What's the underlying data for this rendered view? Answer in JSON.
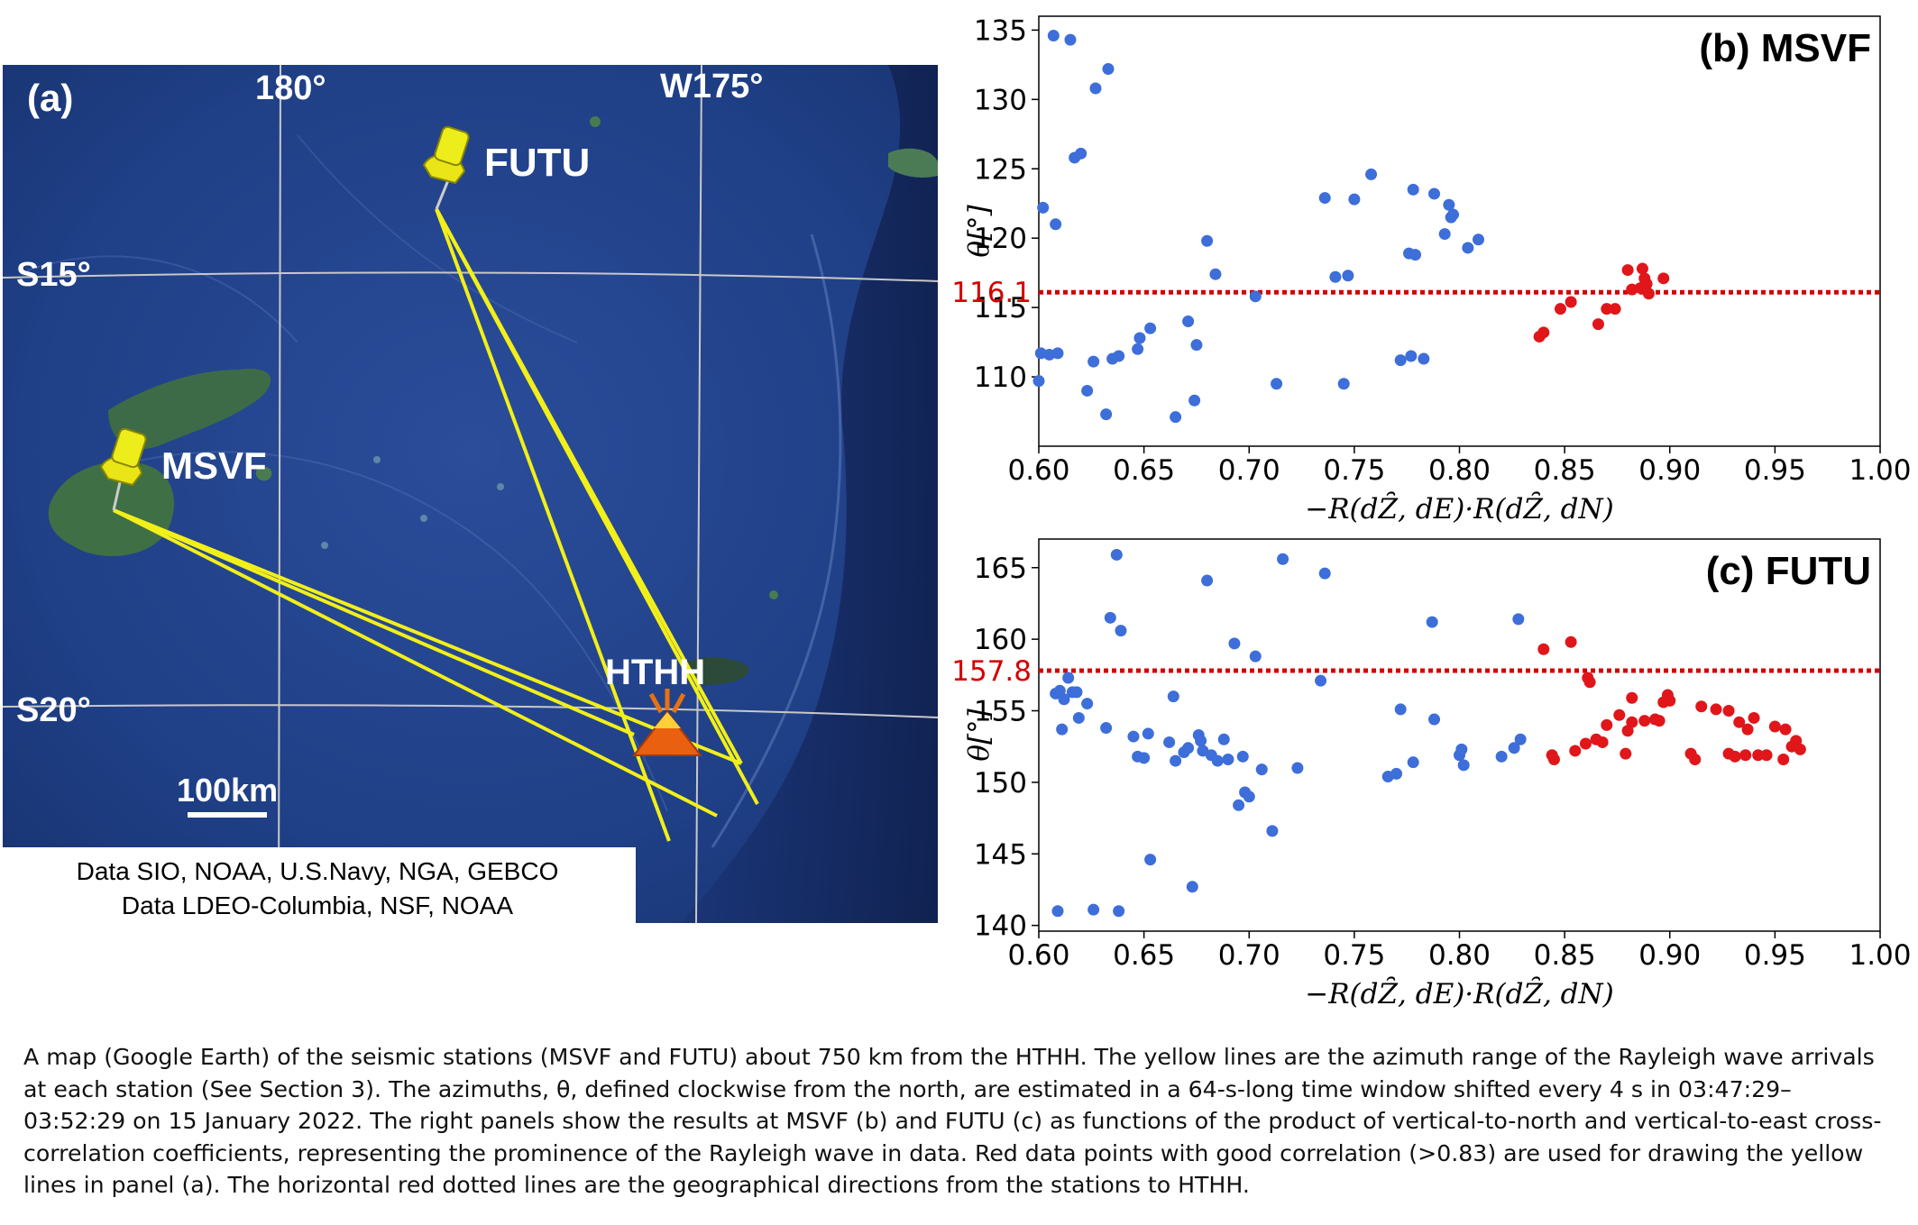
{
  "map": {
    "panel_label": "(a)",
    "lon_labels": [
      "180°",
      "W175°"
    ],
    "lat_labels": [
      "S15°",
      "S20°"
    ],
    "stations": [
      "FUTU",
      "MSVF"
    ],
    "volcano_label": "HTHH",
    "scale_label": "100km",
    "credits": [
      "Data SIO, NOAA, U.S.Navy, NGA, GEBCO",
      "Data LDEO-Columbia, NSF, NOAA"
    ]
  },
  "chart_data": [
    {
      "type": "scatter",
      "title": "(b) MSVF",
      "xlabel": "−R(dZ̑, dE)·R(dZ̑, dN)",
      "ylabel": "θ[°]",
      "xlim": [
        0.6,
        1.0
      ],
      "ylim": [
        105,
        136
      ],
      "xticks": [
        "0.60",
        "0.65",
        "0.70",
        "0.75",
        "0.80",
        "0.85",
        "0.90",
        "0.95",
        "1.00"
      ],
      "yticks": [
        "110",
        "115",
        "120",
        "125",
        "130",
        "135"
      ],
      "reference": {
        "value": 116.1,
        "label": "116.1",
        "color": "#d40000"
      },
      "series": [
        {
          "color": "#3d6ed9",
          "points": [
            [
              0.6,
              109.7
            ],
            [
              0.601,
              111.7
            ],
            [
              0.602,
              122.2
            ],
            [
              0.605,
              111.6
            ],
            [
              0.607,
              134.6
            ],
            [
              0.608,
              121.0
            ],
            [
              0.609,
              111.7
            ],
            [
              0.615,
              134.3
            ],
            [
              0.617,
              125.8
            ],
            [
              0.62,
              126.1
            ],
            [
              0.623,
              109.0
            ],
            [
              0.626,
              111.1
            ],
            [
              0.627,
              130.8
            ],
            [
              0.632,
              107.3
            ],
            [
              0.633,
              132.2
            ],
            [
              0.635,
              111.3
            ],
            [
              0.638,
              111.5
            ],
            [
              0.647,
              112.0
            ],
            [
              0.648,
              112.8
            ],
            [
              0.653,
              113.5
            ],
            [
              0.665,
              107.1
            ],
            [
              0.671,
              114.0
            ],
            [
              0.674,
              108.3
            ],
            [
              0.675,
              112.3
            ],
            [
              0.68,
              119.8
            ],
            [
              0.684,
              117.4
            ],
            [
              0.703,
              115.8
            ],
            [
              0.713,
              109.5
            ],
            [
              0.736,
              122.9
            ],
            [
              0.741,
              117.2
            ],
            [
              0.745,
              109.5
            ],
            [
              0.747,
              117.3
            ],
            [
              0.75,
              122.8
            ],
            [
              0.758,
              124.6
            ],
            [
              0.772,
              111.2
            ],
            [
              0.776,
              118.9
            ],
            [
              0.777,
              111.5
            ],
            [
              0.778,
              123.5
            ],
            [
              0.779,
              118.8
            ],
            [
              0.783,
              111.3
            ],
            [
              0.788,
              123.2
            ],
            [
              0.793,
              120.3
            ],
            [
              0.795,
              122.4
            ],
            [
              0.796,
              121.5
            ],
            [
              0.797,
              121.7
            ],
            [
              0.804,
              119.3
            ],
            [
              0.809,
              119.9
            ]
          ]
        },
        {
          "color": "#e0161a",
          "points": [
            [
              0.838,
              112.9
            ],
            [
              0.84,
              113.2
            ],
            [
              0.848,
              114.9
            ],
            [
              0.853,
              115.4
            ],
            [
              0.866,
              113.8
            ],
            [
              0.87,
              114.9
            ],
            [
              0.874,
              114.9
            ],
            [
              0.88,
              117.7
            ],
            [
              0.882,
              116.3
            ],
            [
              0.886,
              116.4
            ],
            [
              0.887,
              117.8
            ],
            [
              0.888,
              117.1
            ],
            [
              0.889,
              116.7
            ],
            [
              0.89,
              116.0
            ],
            [
              0.897,
              117.1
            ]
          ]
        }
      ]
    },
    {
      "type": "scatter",
      "title": "(c) FUTU",
      "xlabel": "−R(dZ̑, dE)·R(dZ̑, dN)",
      "ylabel": "θ[°]",
      "xlim": [
        0.6,
        1.0
      ],
      "ylim": [
        139.6,
        167
      ],
      "xticks": [
        "0.60",
        "0.65",
        "0.70",
        "0.75",
        "0.80",
        "0.85",
        "0.90",
        "0.95",
        "1.00"
      ],
      "yticks": [
        "140",
        "145",
        "150",
        "155",
        "160",
        "165"
      ],
      "reference": {
        "value": 157.8,
        "label": "157.8",
        "color": "#d40000"
      },
      "series": [
        {
          "color": "#3d6ed9",
          "points": [
            [
              0.608,
              156.2
            ],
            [
              0.609,
              141.0
            ],
            [
              0.61,
              156.4
            ],
            [
              0.611,
              153.7
            ],
            [
              0.612,
              155.8
            ],
            [
              0.614,
              157.3
            ],
            [
              0.616,
              156.3
            ],
            [
              0.618,
              156.3
            ],
            [
              0.619,
              154.5
            ],
            [
              0.623,
              155.5
            ],
            [
              0.626,
              141.1
            ],
            [
              0.632,
              153.8
            ],
            [
              0.634,
              161.5
            ],
            [
              0.637,
              165.9
            ],
            [
              0.638,
              141.0
            ],
            [
              0.639,
              160.6
            ],
            [
              0.645,
              153.2
            ],
            [
              0.647,
              151.8
            ],
            [
              0.65,
              151.7
            ],
            [
              0.652,
              153.4
            ],
            [
              0.653,
              144.6
            ],
            [
              0.662,
              152.8
            ],
            [
              0.664,
              156.0
            ],
            [
              0.665,
              151.5
            ],
            [
              0.669,
              152.1
            ],
            [
              0.671,
              152.4
            ],
            [
              0.673,
              142.7
            ],
            [
              0.676,
              153.3
            ],
            [
              0.677,
              152.9
            ],
            [
              0.678,
              152.2
            ],
            [
              0.68,
              164.1
            ],
            [
              0.682,
              151.9
            ],
            [
              0.685,
              151.5
            ],
            [
              0.688,
              153.0
            ],
            [
              0.69,
              151.6
            ],
            [
              0.693,
              159.7
            ],
            [
              0.695,
              148.4
            ],
            [
              0.697,
              151.8
            ],
            [
              0.698,
              149.3
            ],
            [
              0.7,
              149.0
            ],
            [
              0.703,
              158.8
            ],
            [
              0.706,
              150.9
            ],
            [
              0.711,
              146.6
            ],
            [
              0.716,
              165.6
            ],
            [
              0.723,
              151.0
            ],
            [
              0.734,
              157.1
            ],
            [
              0.736,
              164.6
            ],
            [
              0.766,
              150.4
            ],
            [
              0.77,
              150.6
            ],
            [
              0.772,
              155.1
            ],
            [
              0.778,
              151.4
            ],
            [
              0.787,
              161.2
            ],
            [
              0.788,
              154.4
            ],
            [
              0.8,
              151.9
            ],
            [
              0.801,
              152.3
            ],
            [
              0.802,
              151.2
            ],
            [
              0.82,
              151.8
            ],
            [
              0.826,
              152.4
            ],
            [
              0.828,
              161.4
            ],
            [
              0.829,
              153.0
            ]
          ]
        },
        {
          "color": "#e0161a",
          "points": [
            [
              0.84,
              159.3
            ],
            [
              0.844,
              151.9
            ],
            [
              0.845,
              151.6
            ],
            [
              0.853,
              159.8
            ],
            [
              0.855,
              152.2
            ],
            [
              0.86,
              152.7
            ],
            [
              0.861,
              157.3
            ],
            [
              0.862,
              157.0
            ],
            [
              0.865,
              153.0
            ],
            [
              0.868,
              152.8
            ],
            [
              0.87,
              154.0
            ],
            [
              0.876,
              154.7
            ],
            [
              0.879,
              152.0
            ],
            [
              0.88,
              153.6
            ],
            [
              0.882,
              155.9
            ],
            [
              0.882,
              154.2
            ],
            [
              0.888,
              154.3
            ],
            [
              0.893,
              154.4
            ],
            [
              0.895,
              154.3
            ],
            [
              0.897,
              155.6
            ],
            [
              0.899,
              156.1
            ],
            [
              0.9,
              155.7
            ],
            [
              0.91,
              152.0
            ],
            [
              0.912,
              151.6
            ],
            [
              0.915,
              155.3
            ],
            [
              0.922,
              155.1
            ],
            [
              0.928,
              152.0
            ],
            [
              0.928,
              155.0
            ],
            [
              0.931,
              151.8
            ],
            [
              0.933,
              154.2
            ],
            [
              0.936,
              151.9
            ],
            [
              0.937,
              153.7
            ],
            [
              0.94,
              154.5
            ],
            [
              0.942,
              151.9
            ],
            [
              0.946,
              151.9
            ],
            [
              0.95,
              153.9
            ],
            [
              0.954,
              151.6
            ],
            [
              0.955,
              153.7
            ],
            [
              0.958,
              152.5
            ],
            [
              0.96,
              152.9
            ],
            [
              0.962,
              152.3
            ]
          ]
        }
      ]
    }
  ],
  "caption": "A map (Google Earth) of the seismic stations (MSVF and FUTU) about 750 km from the HTHH. The yellow lines are the azimuth range of the Rayleigh wave arrivals at each station (See Section 3). The azimuths, θ, defined clockwise from the north, are estimated in a 64-s-long time window shifted every 4 s in 03:47:29–03:52:29 on 15 January 2022. The right panels show the results at MSVF (b) and FUTU (c) as functions of the product of vertical-to-north and vertical-to-east cross-correlation coefficients, representing the prominence of the Rayleigh wave in data. Red data points with good correlation (>0.83) are used for drawing the yellow lines in panel (a). The horizontal red dotted lines are the geographical directions from the stations to HTHH."
}
